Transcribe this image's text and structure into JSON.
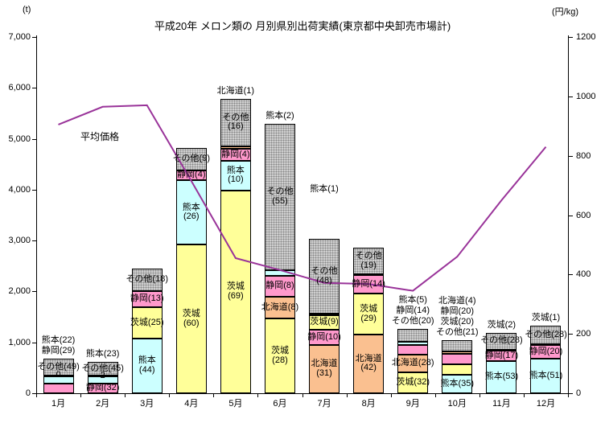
{
  "chart_data": {
    "type": "stacked-bar+line",
    "title": "平成20年 メロン類の 月別県別出荷実績(東京都中央卸売市場計)",
    "months": [
      "1月",
      "2月",
      "3月",
      "4月",
      "5月",
      "6月",
      "7月",
      "8月",
      "9月",
      "10月",
      "11月",
      "12月"
    ],
    "left_axis": {
      "unit": "(t)",
      "min": 0,
      "max": 7000,
      "step": 1000,
      "tick_labels": [
        "0",
        "1,000",
        "2,000",
        "3,000",
        "4,000",
        "5,000",
        "6,000",
        "7,000"
      ]
    },
    "right_axis": {
      "unit": "(円/kg)",
      "min": 0,
      "max": 1200,
      "step": 200,
      "tick_labels": [
        "0",
        "200",
        "400",
        "600",
        "800",
        "1000",
        "1200"
      ]
    },
    "colors": {
      "kumamoto": "#CCFFFF",
      "shizuoka": "#FF99CC",
      "ibaraki": "#FFFF99",
      "hokkaido": "#FAC090",
      "sonota": "#CFCFCF",
      "dot": "#878787",
      "line": "#993399"
    },
    "prefecture_names": {
      "kumamoto": "熊本",
      "shizuoka": "静岡",
      "ibaraki": "茨城",
      "hokkaido": "北海道",
      "sonota": "その他"
    },
    "price_line": {
      "label": "平均価格",
      "values": [
        905,
        965,
        970,
        715,
        455,
        415,
        372,
        368,
        345,
        460,
        650,
        830
      ]
    },
    "bars": [
      {
        "month": "1月",
        "total_t": 680,
        "segments": [
          {
            "key": "shizuoka",
            "pct": 29,
            "labels": []
          },
          {
            "key": "kumamoto",
            "pct": 22,
            "labels": []
          },
          {
            "key": "ibaraki",
            "pct": 0,
            "labels": [
              "0"
            ]
          },
          {
            "key": "sonota",
            "pct": 49,
            "labels": [
              "その他(49)"
            ]
          }
        ],
        "outside_labels": [
          "熊本(22)",
          "静岡(29)"
        ]
      },
      {
        "month": "2月",
        "total_t": 620,
        "segments": [
          {
            "key": "shizuoka",
            "pct": 32,
            "labels": [
              "静岡(32)"
            ]
          },
          {
            "key": "kumamoto",
            "pct": 23,
            "labels": []
          },
          {
            "key": "ibaraki",
            "pct": 2,
            "labels": [
              "2"
            ]
          },
          {
            "key": "sonota",
            "pct": 45,
            "labels": [
              "その他(45)"
            ]
          }
        ],
        "outside_labels": [
          "熊本(23)"
        ]
      },
      {
        "month": "3月",
        "total_t": 2450,
        "segments": [
          {
            "key": "kumamoto",
            "pct": 44,
            "labels": [
              "熊本",
              "(44)"
            ]
          },
          {
            "key": "ibaraki",
            "pct": 25,
            "labels": [
              "茨城(25)"
            ]
          },
          {
            "key": "shizuoka",
            "pct": 13,
            "labels": [
              "静岡(13)"
            ]
          },
          {
            "key": "sonota",
            "pct": 18,
            "labels": [
              "その他(18)"
            ]
          }
        ],
        "outside_labels": []
      },
      {
        "month": "4月",
        "total_t": 4820,
        "segments": [
          {
            "key": "ibaraki",
            "pct": 60,
            "labels": [
              "茨城",
              "(60)"
            ]
          },
          {
            "key": "kumamoto",
            "pct": 26,
            "labels": [
              "熊本",
              "(26)"
            ]
          },
          {
            "key": "shizuoka",
            "pct": 4,
            "labels": [
              "静岡(4)"
            ]
          },
          {
            "key": "sonota",
            "pct": 9,
            "labels": [
              "その他(9)"
            ]
          }
        ],
        "outside_labels": []
      },
      {
        "month": "5月",
        "total_t": 5780,
        "segments": [
          {
            "key": "ibaraki",
            "pct": 69,
            "labels": [
              "茨城",
              "(69)"
            ]
          },
          {
            "key": "kumamoto",
            "pct": 10,
            "labels": [
              "熊本",
              "(10)"
            ]
          },
          {
            "key": "shizuoka",
            "pct": 4,
            "labels": [
              "静岡(4)"
            ]
          },
          {
            "key": "hokkaido",
            "pct": 1,
            "labels": []
          },
          {
            "key": "sonota",
            "pct": 16,
            "labels": [
              "その他",
              "(16)"
            ]
          }
        ],
        "outside_labels": [
          "北海道(1)"
        ]
      },
      {
        "month": "6月",
        "total_t": 5300,
        "segments": [
          {
            "key": "ibaraki",
            "pct": 28,
            "labels": [
              "茨城",
              "(28)"
            ]
          },
          {
            "key": "hokkaido",
            "pct": 8,
            "labels": [
              "北海道(8)"
            ]
          },
          {
            "key": "shizuoka",
            "pct": 8,
            "labels": [
              "静岡(8)"
            ]
          },
          {
            "key": "kumamoto",
            "pct": 2,
            "labels": []
          },
          {
            "key": "sonota",
            "pct": 55,
            "labels": [
              "その他",
              "(55)"
            ]
          }
        ],
        "outside_labels": [
          "熊本(2)"
        ]
      },
      {
        "month": "7月",
        "total_t": 3030,
        "segments": [
          {
            "key": "hokkaido",
            "pct": 31,
            "labels": [
              "北海道",
              "(31)"
            ]
          },
          {
            "key": "shizuoka",
            "pct": 10,
            "labels": [
              "静岡(10)"
            ]
          },
          {
            "key": "ibaraki",
            "pct": 9,
            "labels": [
              "茨城(9)"
            ]
          },
          {
            "key": "kumamoto",
            "pct": 1,
            "labels": []
          },
          {
            "key": "sonota",
            "pct": 48,
            "labels": [
              "その他",
              "(48)"
            ]
          }
        ],
        "outside_labels": [
          "熊本(1)"
        ],
        "outside_gap": 55
      },
      {
        "month": "8月",
        "total_t": 2860,
        "segments": [
          {
            "key": "hokkaido",
            "pct": 42,
            "labels": [
              "北海道",
              "(42)"
            ]
          },
          {
            "key": "ibaraki",
            "pct": 29,
            "labels": [
              "茨城",
              "(29)"
            ]
          },
          {
            "key": "shizuoka",
            "pct": 14,
            "labels": [
              "静岡(14)"
            ]
          },
          {
            "key": "kumamoto",
            "pct": 0,
            "labels": []
          },
          {
            "key": "sonota",
            "pct": 19,
            "labels": [
              "その他",
              "(19)"
            ]
          }
        ],
        "outside_labels": []
      },
      {
        "month": "9月",
        "total_t": 1260,
        "segments": [
          {
            "key": "ibaraki",
            "pct": 32,
            "labels": [
              "茨城(32)"
            ]
          },
          {
            "key": "hokkaido",
            "pct": 28,
            "labels": [
              "北海道(28)"
            ]
          },
          {
            "key": "shizuoka",
            "pct": 14,
            "labels": []
          },
          {
            "key": "kumamoto",
            "pct": 5,
            "labels": []
          },
          {
            "key": "sonota",
            "pct": 20,
            "labels": []
          }
        ],
        "outside_labels": [
          "熊本(5)",
          "静岡(14)",
          "その他(20)"
        ]
      },
      {
        "month": "10月",
        "total_t": 1040,
        "segments": [
          {
            "key": "kumamoto",
            "pct": 35,
            "labels": [
              "熊本(35)"
            ]
          },
          {
            "key": "ibaraki",
            "pct": 20,
            "labels": []
          },
          {
            "key": "shizuoka",
            "pct": 20,
            "labels": []
          },
          {
            "key": "hokkaido",
            "pct": 4,
            "labels": []
          },
          {
            "key": "sonota",
            "pct": 21,
            "labels": []
          }
        ],
        "outside_labels": [
          "北海道(4)",
          "静岡(20)",
          "茨城(20)",
          "その他(21)"
        ]
      },
      {
        "month": "11月",
        "total_t": 1190,
        "segments": [
          {
            "key": "kumamoto",
            "pct": 53,
            "labels": [
              "熊本(53)"
            ]
          },
          {
            "key": "shizuoka",
            "pct": 17,
            "labels": [
              "静岡(17)"
            ]
          },
          {
            "key": "ibaraki",
            "pct": 2,
            "labels": []
          },
          {
            "key": "sonota",
            "pct": 28,
            "labels": [
              "その他(28)"
            ]
          }
        ],
        "outside_labels": [
          "茨城(2)"
        ]
      },
      {
        "month": "12月",
        "total_t": 1330,
        "segments": [
          {
            "key": "kumamoto",
            "pct": 51,
            "labels": [
              "熊本(51)"
            ]
          },
          {
            "key": "shizuoka",
            "pct": 20,
            "labels": [
              "静岡(20)"
            ]
          },
          {
            "key": "ibaraki",
            "pct": 1,
            "labels": []
          },
          {
            "key": "sonota",
            "pct": 28,
            "labels": [
              "その他(28)"
            ]
          }
        ],
        "outside_labels": [
          "茨城(1)"
        ]
      }
    ]
  }
}
